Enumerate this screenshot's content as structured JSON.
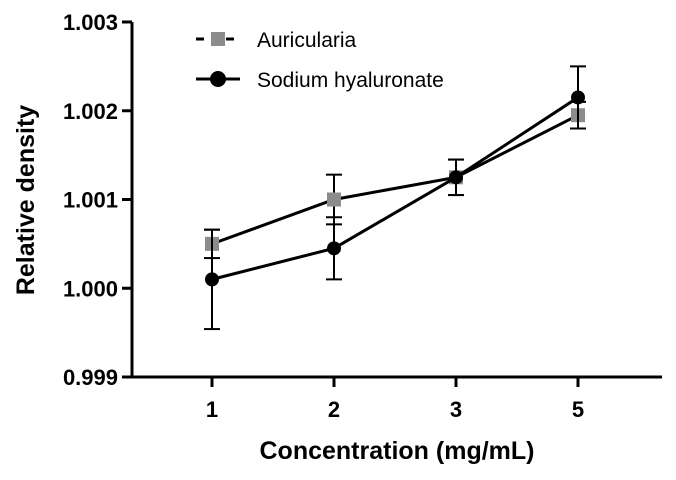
{
  "chart_data": {
    "type": "line",
    "title": "",
    "xlabel": "Concentration (mg/mL)",
    "ylabel": "Relative density",
    "categories": [
      "1",
      "2",
      "3",
      "5"
    ],
    "ylim": [
      0.999,
      1.003
    ],
    "yticks": [
      "0.999",
      "1.000",
      "1.001",
      "1.002",
      "1.003"
    ],
    "ytick_values": [
      0.999,
      1.0,
      1.001,
      1.002,
      1.003
    ],
    "legend_position": "top-left",
    "grid": false,
    "series": [
      {
        "name": "Auricularia",
        "marker": "square",
        "color": "#8c8c8c",
        "values": [
          1.0005,
          1.001,
          1.00125,
          1.00195
        ],
        "errors": [
          0.00016,
          0.00028,
          0.0002,
          0.00015
        ]
      },
      {
        "name": "Sodium hyaluronate",
        "marker": "circle",
        "color": "#000000",
        "values": [
          1.0001,
          1.00045,
          1.00125,
          1.00215
        ],
        "errors": [
          0.00056,
          0.00035,
          0.0002,
          0.00035
        ]
      }
    ]
  }
}
